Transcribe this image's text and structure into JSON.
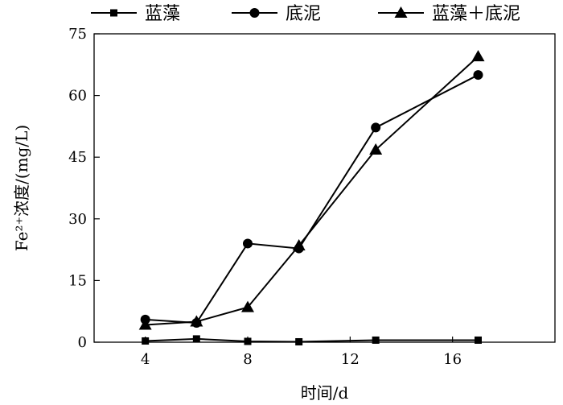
{
  "chart_data": {
    "type": "line",
    "title": "",
    "xlabel": "时间/d",
    "ylabel": "Fe²⁺浓度/(mg/L)",
    "xlim": [
      2,
      20
    ],
    "ylim": [
      0,
      75
    ],
    "xticks": [
      4,
      8,
      12,
      16
    ],
    "yticks": [
      0,
      15,
      30,
      45,
      60,
      75
    ],
    "xtick_labels": [
      "4",
      "8",
      "12",
      "16"
    ],
    "ytick_labels": [
      "0",
      "15",
      "30",
      "45",
      "60",
      "75"
    ],
    "grid": false,
    "legend_position": "top",
    "x": [
      4,
      6,
      8,
      10,
      13,
      17
    ],
    "series": [
      {
        "name": "蓝藻",
        "marker": "square",
        "values": [
          0.3,
          0.8,
          0.2,
          0.1,
          0.5,
          0.5
        ]
      },
      {
        "name": "底泥",
        "marker": "circle",
        "values": [
          5.5,
          4.7,
          24.0,
          22.8,
          52.2,
          65.0
        ]
      },
      {
        "name": "蓝藻＋底泥",
        "marker": "triangle",
        "values": [
          4.2,
          5.0,
          8.5,
          23.5,
          46.8,
          69.5
        ]
      }
    ]
  }
}
